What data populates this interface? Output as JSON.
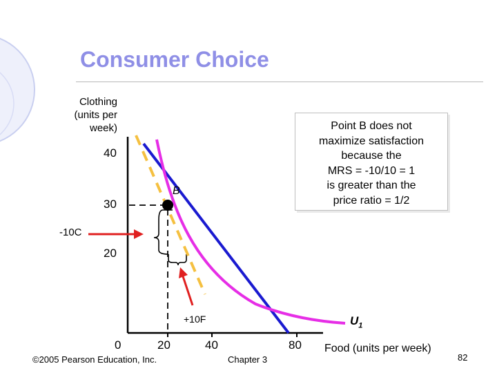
{
  "slide": {
    "title": "Consumer Choice",
    "footer_copyright": "©2005 Pearson Education, Inc.",
    "footer_chapter": "Chapter 3",
    "page_number": "82"
  },
  "diagram": {
    "y_axis_label": [
      "Clothing",
      "(units per",
      "week)"
    ],
    "x_axis_label": "Food (units per week)",
    "y_ticks": [
      "40",
      "30",
      "20"
    ],
    "x_ticks": [
      "0",
      "20",
      "40",
      "80"
    ],
    "point_label": "B",
    "curve_label": "U",
    "curve_label_sub": "1",
    "change_clothing_label": "-10C",
    "change_food_label": "+10F",
    "callout_lines": [
      "Point B does not",
      "maximize satisfaction",
      "because the",
      "MRS = -10/10 = 1",
      "is greater than the",
      "price ratio = 1/2"
    ],
    "colors": {
      "title": "#8f8fe6",
      "budget_line": "#1a1ad0",
      "indifference_curve": "#e62ee6",
      "tangent_dashed": "#f5c040",
      "arrow": "#e02020",
      "point": "#000000"
    }
  }
}
